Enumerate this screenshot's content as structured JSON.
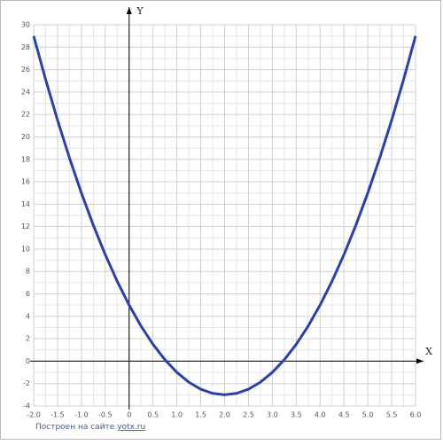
{
  "chart_data": {
    "type": "line",
    "x_label": "X",
    "y_label": "Y",
    "x": [
      -2,
      -1.75,
      -1.5,
      -1.25,
      -1,
      -0.75,
      -0.5,
      -0.25,
      0,
      0.25,
      0.5,
      0.75,
      1,
      1.25,
      1.5,
      1.75,
      2,
      2.25,
      2.5,
      2.75,
      3,
      3.25,
      3.5,
      3.75,
      4,
      4.25,
      4.5,
      4.75,
      5,
      5.25,
      5.5,
      5.75,
      6
    ],
    "series": [
      {
        "color": "#2a3fb0",
        "values": [
          29,
          25.125,
          21.5,
          18.125,
          15,
          12.125,
          9.5,
          7.125,
          5,
          3.125,
          1.5,
          0.125,
          -1,
          -1.875,
          -2.5,
          -2.875,
          -3,
          -2.875,
          -2.5,
          -1.875,
          -1,
          0.125,
          1.5,
          3.125,
          5,
          7.125,
          9.5,
          12.125,
          15,
          18.125,
          21.5,
          25.125,
          29
        ]
      }
    ],
    "xlim": [
      -2,
      6
    ],
    "ylim": [
      -4,
      30
    ],
    "xticks": [
      {
        "value": -2,
        "label": "-2.0"
      },
      -1.5,
      {
        "value": -1,
        "label": "-1.0"
      },
      -0.5,
      0,
      0.5,
      {
        "value": 1,
        "label": "1.0"
      },
      1.5,
      {
        "value": 2,
        "label": "2.0"
      },
      2.5,
      {
        "value": 3,
        "label": "3.0"
      },
      3.5,
      {
        "value": 4,
        "label": "4.0"
      },
      4.5,
      {
        "value": 5,
        "label": "5.0"
      },
      5.5,
      {
        "value": 6,
        "label": "6.0"
      }
    ],
    "yticks": [
      -4,
      -2,
      0,
      2,
      4,
      6,
      8,
      10,
      12,
      14,
      16,
      18,
      20,
      22,
      24,
      26,
      28,
      30
    ],
    "grid": true
  },
  "footer": {
    "text": "Построен на сайте",
    "link": "yotx.ru"
  }
}
